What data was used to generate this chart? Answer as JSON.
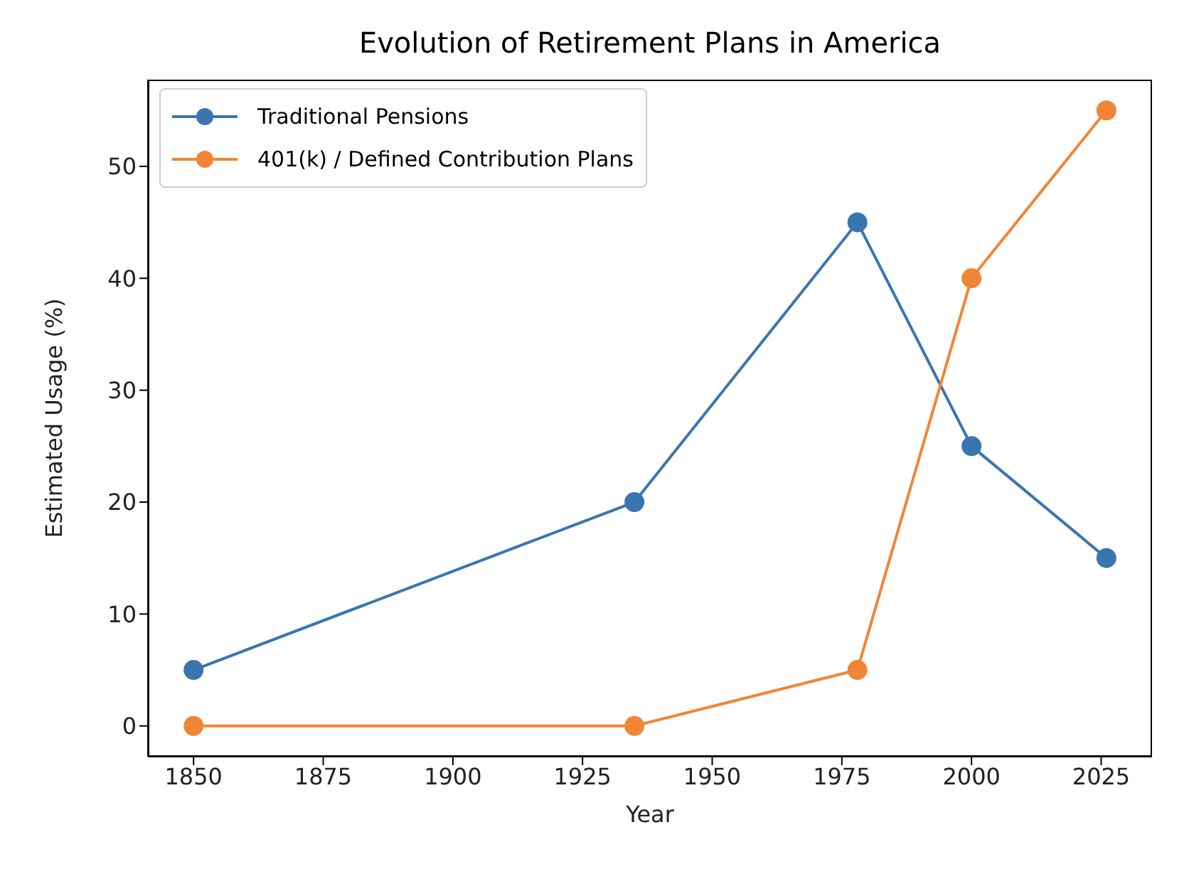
{
  "chart_data": {
    "type": "line",
    "title": "Evolution of Retirement Plans in America",
    "xlabel": "Year",
    "ylabel": "Estimated Usage (%)",
    "x": [
      1850,
      1935,
      1978,
      2000,
      2026
    ],
    "series": [
      {
        "name": "Traditional Pensions",
        "color": "#3a75b0",
        "values": [
          5,
          20,
          45,
          25,
          15
        ]
      },
      {
        "name": "401(k) / Defined Contribution Plans",
        "color": "#ef8636",
        "values": [
          0,
          0,
          5,
          40,
          55
        ]
      }
    ],
    "xlim": [
      1841.2,
      2034.8
    ],
    "xticks": [
      1850,
      1875,
      1900,
      1925,
      1950,
      1975,
      2000,
      2025
    ],
    "ylim": [
      -2.75,
      57.75
    ],
    "yticks": [
      0,
      10,
      20,
      30,
      40,
      50
    ],
    "grid": false,
    "legend": "top left",
    "marker": "circle",
    "line_style": "solid"
  }
}
